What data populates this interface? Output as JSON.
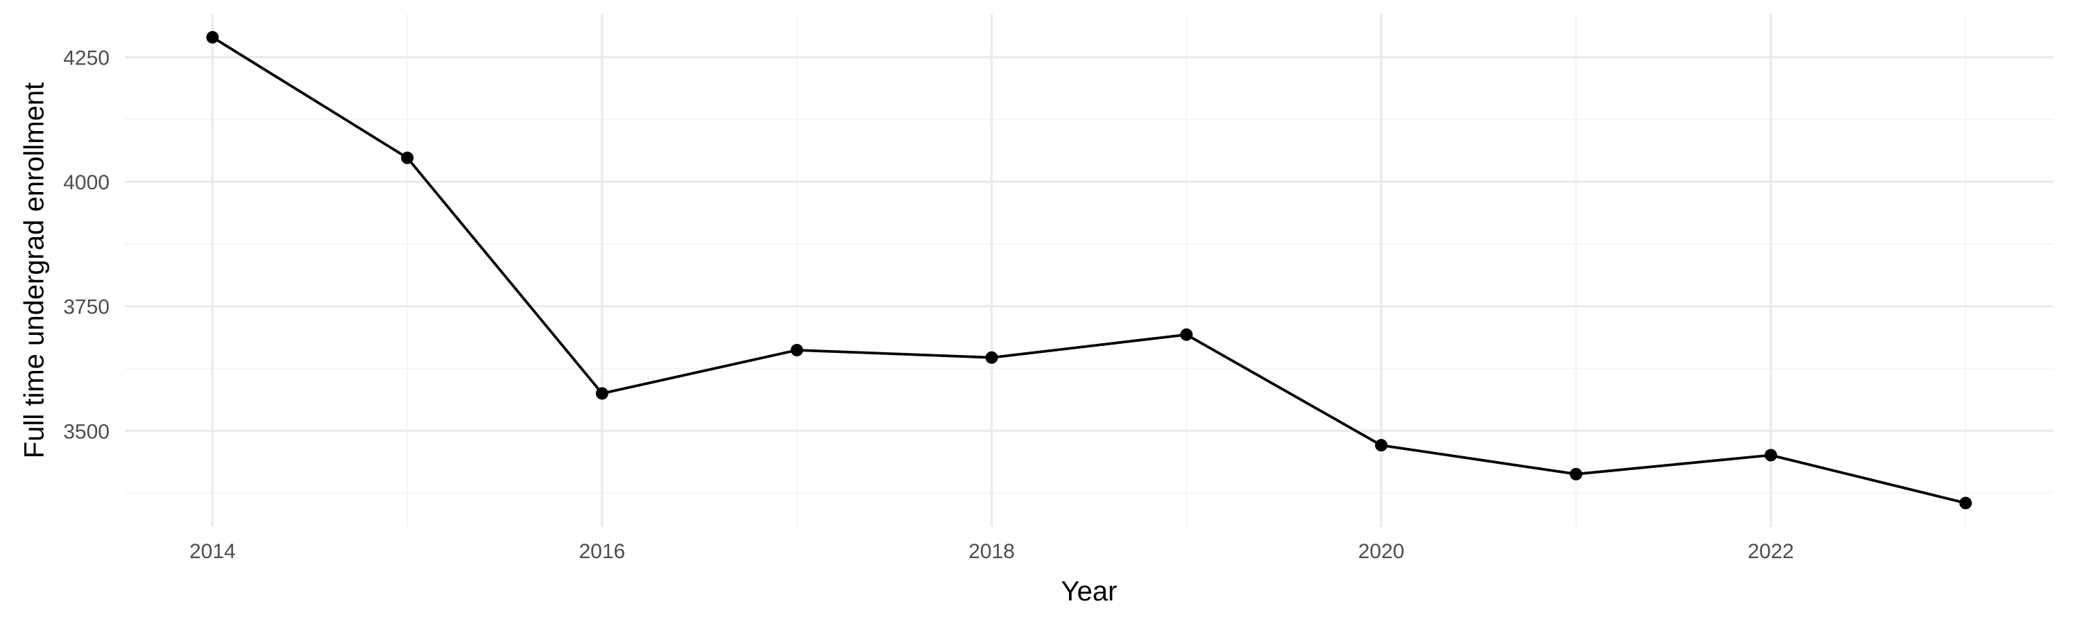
{
  "chart_data": {
    "type": "line",
    "title": "",
    "xlabel": "Year",
    "ylabel": "Full time undergrad enrollment",
    "x": [
      2014,
      2015,
      2016,
      2017,
      2018,
      2019,
      2020,
      2021,
      2022,
      2023
    ],
    "series": [
      {
        "values": [
          4290,
          4048,
          3575,
          3662,
          3647,
          3693,
          3471,
          3413,
          3451,
          3355
        ]
      }
    ],
    "xlim": [
      2013.55,
      2023.45
    ],
    "ylim": [
      3307,
      4337
    ],
    "x_ticks": [
      2014,
      2016,
      2018,
      2020,
      2022
    ],
    "y_ticks": [
      3500,
      3750,
      4000,
      4250
    ],
    "x_minor_ticks": [
      2015,
      2017,
      2019,
      2021,
      2023
    ],
    "y_minor_ticks": [
      3375,
      3625,
      3875,
      4125
    ],
    "grid": true,
    "legend": "none",
    "line_color": "#000000",
    "point_color": "#000000",
    "grid_color": "#ebebeb"
  }
}
